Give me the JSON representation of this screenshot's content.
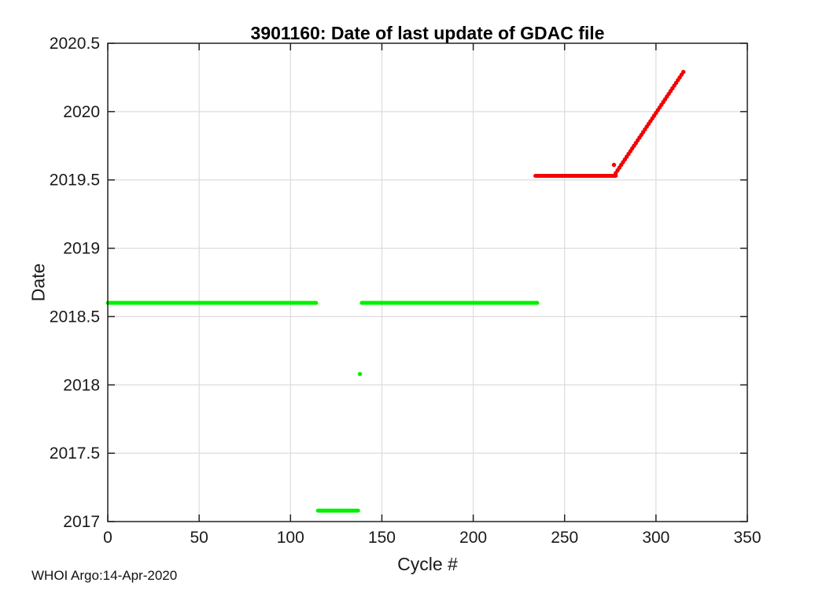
{
  "chart_data": {
    "type": "scatter",
    "title": "3901160: Date of last update of GDAC file",
    "xlabel": "Cycle #",
    "ylabel": "Date",
    "annotation": "WHOI Argo:14-Apr-2020",
    "xlim": [
      0,
      350
    ],
    "ylim": [
      2017,
      2020.5
    ],
    "xticks": [
      0,
      50,
      100,
      150,
      200,
      250,
      300,
      350
    ],
    "xtick_labels": [
      "0",
      "50",
      "100",
      "150",
      "200",
      "250",
      "300",
      "350"
    ],
    "yticks": [
      2017,
      2017.5,
      2018,
      2018.5,
      2019,
      2019.5,
      2020,
      2020.5
    ],
    "ytick_labels": [
      "2017",
      "2017.5",
      "2018",
      "2018.5",
      "2019",
      "2019.5",
      "2020",
      "2020.5"
    ],
    "grid": true,
    "legend": "none",
    "colors": {
      "green_series": "#00f000",
      "red_series": "#f40000",
      "axis": "#222222",
      "grid": "#dcdcdc",
      "title": "#000000"
    },
    "series": [
      {
        "name": "green-series",
        "color_key": "green_series",
        "line_width": 5,
        "marker_radius": 2.7,
        "segments": [
          [
            0,
            114,
            2018.6
          ],
          [
            115,
            137,
            2017.08
          ],
          [
            139,
            235,
            2018.6
          ]
        ],
        "points": [
          [
            138,
            2018.08
          ]
        ]
      },
      {
        "name": "red-series",
        "color_key": "red_series",
        "line_width": 5,
        "marker_radius": 2.7,
        "segments": [
          [
            234,
            278,
            2019.53
          ]
        ],
        "points": [
          [
            277,
            2019.61
          ],
          [
            278,
            2019.55
          ],
          [
            279,
            2019.57
          ],
          [
            280,
            2019.59
          ],
          [
            281,
            2019.61
          ],
          [
            282,
            2019.63
          ],
          [
            283,
            2019.65
          ],
          [
            284,
            2019.67
          ],
          [
            285,
            2019.69
          ],
          [
            286,
            2019.71
          ],
          [
            287,
            2019.73
          ],
          [
            288,
            2019.75
          ],
          [
            289,
            2019.77
          ],
          [
            290,
            2019.79
          ],
          [
            291,
            2019.81
          ],
          [
            292,
            2019.83
          ],
          [
            293,
            2019.85
          ],
          [
            294,
            2019.87
          ],
          [
            295,
            2019.89
          ],
          [
            296,
            2019.91
          ],
          [
            297,
            2019.93
          ],
          [
            298,
            2019.95
          ],
          [
            299,
            2019.97
          ],
          [
            300,
            2019.99
          ],
          [
            301,
            2020.01
          ],
          [
            302,
            2020.03
          ],
          [
            303,
            2020.05
          ],
          [
            304,
            2020.07
          ],
          [
            305,
            2020.09
          ],
          [
            306,
            2020.11
          ],
          [
            307,
            2020.13
          ],
          [
            308,
            2020.15
          ],
          [
            309,
            2020.17
          ],
          [
            310,
            2020.19
          ],
          [
            311,
            2020.21
          ],
          [
            312,
            2020.23
          ],
          [
            313,
            2020.25
          ],
          [
            314,
            2020.27
          ],
          [
            315,
            2020.29
          ]
        ]
      }
    ]
  }
}
